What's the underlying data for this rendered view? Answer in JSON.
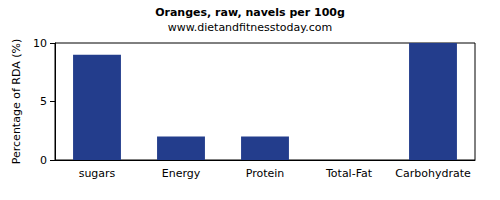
{
  "chart_data": {
    "type": "bar",
    "title": "Oranges, raw, navels per 100g",
    "subtitle": "www.dietandfitnesstoday.com",
    "y_label": "Percentage of RDA (%)",
    "categories": [
      "sugars",
      "Energy",
      "Protein",
      "Total-Fat",
      "Carbohydrate"
    ],
    "values": [
      9,
      2,
      2,
      0,
      10
    ],
    "color": "#233d8c",
    "ylim": [
      0,
      10
    ],
    "yticks": [
      0,
      5,
      10
    ],
    "grid": false
  }
}
